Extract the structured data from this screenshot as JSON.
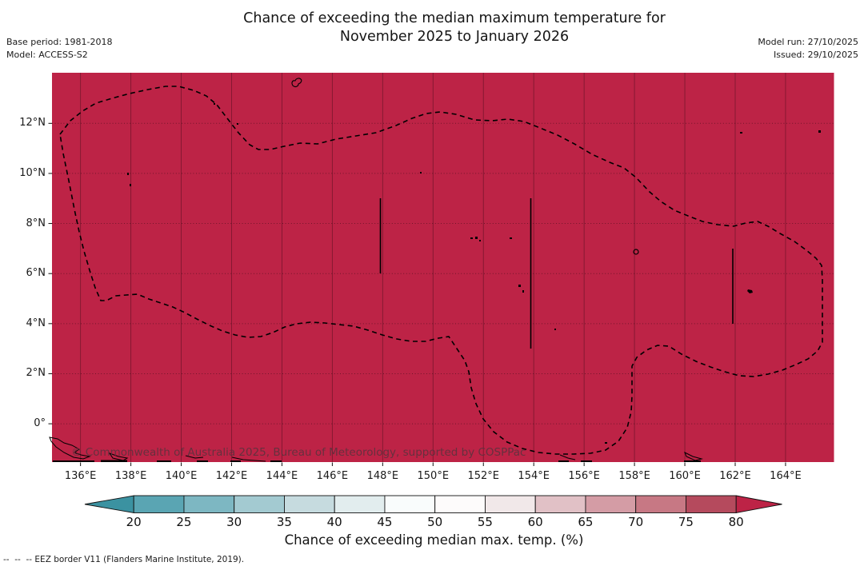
{
  "header": {
    "title_line1": "Chance of exceeding the median maximum temperature for",
    "title_line2": "November 2025 to January 2026",
    "base_period": "Base period: 1981-2018",
    "model": "Model: ACCESS-S2",
    "model_run": "Model run: 27/10/2025",
    "issued": "Issued: 29/10/2025"
  },
  "map": {
    "fill_color": "#bd2346",
    "watermark": "© Commonwealth of Australia 2025, Bureau of Meteorology, supported by COSPPac",
    "x_tick_labels": [
      "136°E",
      "138°E",
      "140°E",
      "142°E",
      "144°E",
      "146°E",
      "148°E",
      "150°E",
      "152°E",
      "154°E",
      "156°E",
      "158°E",
      "160°E",
      "162°E",
      "164°E"
    ],
    "y_tick_labels": [
      "12°N",
      "10°N",
      "8°N",
      "6°N",
      "4°N",
      "2°N",
      "0°"
    ]
  },
  "colorbar": {
    "tick_labels": [
      "20",
      "25",
      "30",
      "35",
      "40",
      "45",
      "50",
      "55",
      "60",
      "65",
      "70",
      "75",
      "80"
    ],
    "segment_colors": [
      "#5aa5b3",
      "#7db7c2",
      "#a3cad1",
      "#c6dbdf",
      "#e2edee",
      "#f9fcfc",
      "#fdfbfb",
      "#f1e8e9",
      "#e1c1c6",
      "#d49ca5",
      "#c77884",
      "#b54a5d"
    ],
    "under_arrow_color": "#3b92a1",
    "over_arrow_color": "#bd2346",
    "label": "Chance of exceeding median max. temp. (%)"
  },
  "footnote": "--  --  -- EEZ border V11 (Flanders Marine Institute, 2019).",
  "chart_data": {
    "type": "heatmap",
    "title": "Chance of exceeding the median maximum temperature for November 2025 to January 2026",
    "x_axis_ticks_lon_e": [
      136,
      138,
      140,
      142,
      144,
      146,
      148,
      150,
      152,
      154,
      156,
      158,
      160,
      162,
      164
    ],
    "y_axis_ticks_lat_n": [
      12,
      10,
      8,
      6,
      4,
      2,
      0
    ],
    "colorbar_ticks_percent": [
      20,
      25,
      30,
      35,
      40,
      45,
      50,
      55,
      60,
      65,
      70,
      75,
      80
    ],
    "colorbar_label": "Chance of exceeding median max. temp. (%)",
    "field_values": "uniform, entire mapped EEZ region exceeds 80%",
    "legend_note": "dashed line = EEZ border V11 (Flanders Marine Institute, 2019)"
  }
}
